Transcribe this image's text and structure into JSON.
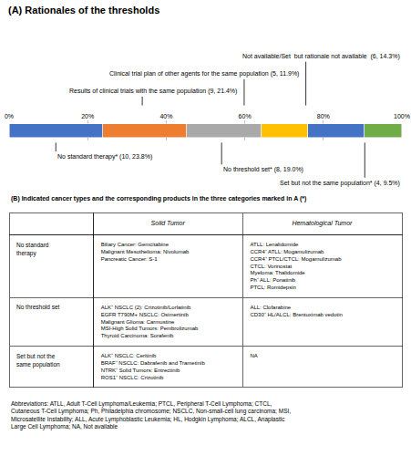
{
  "chart_data": [
    {
      "type": "bar",
      "title": "(A) Rationales of the thresholds",
      "orientation": "horizontal",
      "stacked": true,
      "categories": [
        null
      ],
      "series": [
        {
          "color": "#4472C4",
          "values": [
            23.8
          ]
        },
        {
          "color": "#ED7D31",
          "values": [
            21.4
          ]
        },
        {
          "color": "#A9A9A9",
          "values": [
            19.0
          ]
        },
        {
          "color": "#FFC000",
          "values": [
            11.9
          ]
        },
        {
          "color": "#4472C4",
          "values": [
            14.3
          ]
        },
        {
          "color": "#70AD47",
          "values": [
            9.5
          ]
        }
      ],
      "xlim": [
        0,
        100
      ],
      "xticks": [
        {
          "value": 0,
          "label": "0%"
        },
        {
          "value": 20,
          "label": "20%"
        },
        {
          "value": 40,
          "label": "40%"
        },
        {
          "value": 60,
          "label": "60%"
        },
        {
          "value": 80,
          "label": "80%"
        },
        {
          "value": 100,
          "label": "100%"
        }
      ],
      "grid": true,
      "tick_labels": "x",
      "annotations": [
        {
          "text": "Results of clinical trials with the same population (9, 21.4%)",
          "x": 33.9,
          "side": "top"
        },
        {
          "text": "Clinical trial plan of other agents for the same population (5, 11.9%)",
          "x": 59.85,
          "side": "top"
        },
        {
          "text": "Not available/Set  but rationale not available  (6, 14.3%)",
          "x": 75.55,
          "side": "top"
        },
        {
          "text": "No standard therapy* (10, 23.8%)",
          "x": 11.9,
          "side": "bottom"
        },
        {
          "text": "No threshold set* (8, 19.0%)",
          "x": 54.1,
          "side": "bottom"
        },
        {
          "text": "Set but not the same population* (4, 9.5%)",
          "x": 90.55,
          "side": "bottom"
        }
      ]
    },
    {
      "type": "table",
      "title": "(B) Indicated cancer types and the corresponding products in the three categories marked in A (*)",
      "columns": [
        "Solid Tumor",
        "Hematological Tumor"
      ],
      "rows": [
        {
          "label": "No standard\ntherapy",
          "cells": [
            "Biliary Cancer: Gemcitabine\nMalignant Mesothelioma: Nivolumab\nPancreatic Cancer: S-1",
            "ATLL: Lenalidomide\nCCR4⁺ ATLL: Mogamulizumab\nCCR4⁺ PTCL/CTCL: Mogamulizumab\nCTCL: Vorinostat\nMyeloma: Thalidomide\nPh⁺ ALL: Ponatinib\nPTCL: Romidepsin"
          ]
        },
        {
          "label": "No threshold set",
          "cells": [
            "ALK⁺ NSCLC (2): Crizotinib/Lorlatinib\nEGFR T790M+ NSCLC: Osimertinib\nMalignant Glioma: Carmustine\nMSI-High Solid Tumors: Pembrolizumab\nThyroid Carcinoma: Sorafenib",
            "ALL: Clofarabine\nCD30⁺ HL/ALCL: Brentuximab vedotin"
          ]
        },
        {
          "label": "Set but not the\nsame population",
          "cells": [
            "ALK⁺ NSCLC: Ceritinib\nBRAF⁺ NSCLC: Dabrafenib and Trametinib\nNTRK⁺ Solid Tumors: Entrectinib\nROS1⁺ NSCLC: Crizotinib",
            "NA"
          ]
        }
      ],
      "footnote": "Abbreviations: ATLL, Adult T-Cell Lymphoma/Leukemia; PTCL, Peripheral T-Cell Lymphoma; CTCL,\nCutaneous T-Cell Lymphoma; Ph, Philadelphia chromosome; NSCLC, Non-small-cell lung carcinoma; MSI,\nMicrosatellite Instability; ALL, Acute Lymphoblastic Leukemia; HL, Hodgkin Lymphoma; ALCL, Anaplastic\nLarge Cell Lymphoma; NA, Not available"
    }
  ]
}
